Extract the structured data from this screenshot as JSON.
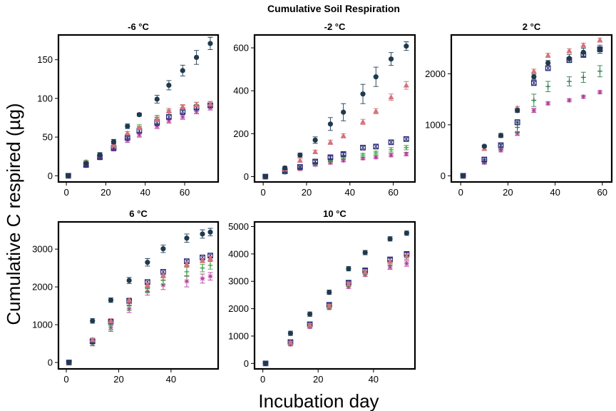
{
  "title": "Cumulative Soil Respiration",
  "ylabel": "Cumulative C respired (µg)",
  "xlabel": "Incubation day",
  "chart_data": [
    {
      "type": "scatter",
      "title": "-6 °C",
      "xlim": [
        -4,
        77
      ],
      "ylim": [
        -8,
        182
      ],
      "xticks": [
        "0",
        "20",
        "40",
        "60"
      ],
      "xtick_values": [
        0,
        20,
        40,
        60
      ],
      "yticks": [
        "0",
        "50",
        "100",
        "150"
      ],
      "ytick_values": [
        0,
        50,
        100,
        150
      ],
      "series": [
        {
          "marker": "circle",
          "color": "#1f3a4d",
          "x": [
            1,
            10,
            17,
            24,
            31,
            37,
            46,
            52,
            59,
            66,
            73
          ],
          "y": [
            0,
            16,
            27,
            44,
            64,
            79,
            99,
            117,
            136,
            153,
            171
          ],
          "err": [
            1,
            2,
            3,
            3,
            3,
            2,
            5,
            6,
            7,
            9,
            8
          ]
        },
        {
          "marker": "triangle",
          "color": "#d4727a",
          "x": [
            1,
            10,
            17,
            24,
            31,
            37,
            46,
            52,
            59,
            66,
            73
          ],
          "y": [
            0,
            17,
            26,
            40,
            55,
            62,
            73,
            84,
            89,
            92,
            93
          ],
          "err": [
            1,
            2,
            2,
            3,
            2,
            2,
            3,
            3,
            3,
            3,
            3
          ]
        },
        {
          "marker": "square",
          "color": "#2a2a7a",
          "x": [
            1,
            10,
            17,
            24,
            31,
            37,
            46,
            52,
            59,
            66,
            73
          ],
          "y": [
            0,
            14,
            24,
            36,
            49,
            58,
            69,
            76,
            83,
            88,
            91
          ],
          "err": [
            1,
            2,
            2,
            3,
            3,
            3,
            4,
            3,
            4,
            3,
            3
          ]
        },
        {
          "marker": "plus",
          "color": "#3a9a3a",
          "x": [
            1,
            10,
            17,
            24,
            31,
            37,
            46,
            52,
            59,
            66,
            73
          ],
          "y": [
            0,
            18,
            27,
            42,
            54,
            63,
            75,
            82,
            88,
            92,
            93
          ],
          "err": [
            1,
            2,
            2,
            3,
            3,
            3,
            3,
            3,
            3,
            3,
            3
          ]
        },
        {
          "marker": "star",
          "color": "#b03a9a",
          "x": [
            1,
            10,
            17,
            24,
            31,
            37,
            46,
            52,
            59,
            66,
            73
          ],
          "y": [
            0,
            13,
            23,
            35,
            46,
            53,
            64,
            71,
            76,
            83,
            88
          ],
          "err": [
            1,
            2,
            2,
            3,
            3,
            3,
            3,
            3,
            3,
            3,
            3
          ]
        }
      ]
    },
    {
      "type": "scatter",
      "title": "-2 °C",
      "xlim": [
        -4,
        70
      ],
      "ylim": [
        -25,
        660
      ],
      "xticks": [
        "0",
        "20",
        "40",
        "60"
      ],
      "xtick_values": [
        0,
        20,
        40,
        60
      ],
      "yticks": [
        "0",
        "200",
        "400",
        "600"
      ],
      "ytick_values": [
        0,
        200,
        400,
        600
      ],
      "series": [
        {
          "marker": "circle",
          "color": "#1f3a4d",
          "x": [
            1,
            10,
            17,
            24,
            31,
            37,
            46,
            52,
            59,
            66
          ],
          "y": [
            0,
            40,
            100,
            170,
            245,
            300,
            385,
            465,
            548,
            608
          ],
          "err": [
            2,
            8,
            10,
            15,
            30,
            40,
            45,
            45,
            30,
            20
          ]
        },
        {
          "marker": "triangle",
          "color": "#d4727a",
          "x": [
            1,
            10,
            17,
            24,
            31,
            37,
            46,
            52,
            59,
            66
          ],
          "y": [
            0,
            35,
            75,
            115,
            160,
            190,
            255,
            305,
            370,
            425
          ],
          "err": [
            2,
            5,
            8,
            8,
            10,
            10,
            12,
            12,
            15,
            18
          ]
        },
        {
          "marker": "square",
          "color": "#2a2a7a",
          "x": [
            1,
            10,
            17,
            24,
            31,
            37,
            46,
            52,
            59,
            66
          ],
          "y": [
            0,
            25,
            45,
            70,
            90,
            105,
            135,
            140,
            160,
            175
          ],
          "err": [
            2,
            5,
            6,
            8,
            8,
            8,
            10,
            10,
            10,
            10
          ]
        },
        {
          "marker": "plus",
          "color": "#3a9a3a",
          "x": [
            1,
            10,
            17,
            24,
            31,
            37,
            46,
            52,
            59,
            66
          ],
          "y": [
            0,
            20,
            40,
            60,
            75,
            90,
            100,
            110,
            125,
            135
          ],
          "err": [
            2,
            4,
            6,
            6,
            6,
            6,
            8,
            8,
            10,
            10
          ]
        },
        {
          "marker": "star",
          "color": "#b03a9a",
          "x": [
            1,
            10,
            17,
            24,
            31,
            37,
            46,
            52,
            59,
            66
          ],
          "y": [
            0,
            20,
            35,
            55,
            65,
            75,
            85,
            90,
            100,
            105
          ],
          "err": [
            2,
            4,
            5,
            5,
            6,
            6,
            6,
            6,
            8,
            8
          ]
        }
      ]
    },
    {
      "type": "scatter",
      "title": "2 °C",
      "xlim": [
        -4,
        64
      ],
      "ylim": [
        -120,
        2760
      ],
      "xticks": [
        "0",
        "20",
        "40",
        "60"
      ],
      "xtick_values": [
        0,
        20,
        40,
        60
      ],
      "yticks": [
        "0",
        "1000",
        "2000"
      ],
      "ytick_values": [
        0,
        1000,
        2000
      ],
      "series": [
        {
          "marker": "circle",
          "color": "#1f3a4d",
          "x": [
            1,
            10,
            17,
            24,
            31,
            37,
            46,
            52,
            59
          ],
          "y": [
            0,
            580,
            790,
            1280,
            1940,
            2210,
            2300,
            2420,
            2480
          ],
          "err": [
            10,
            20,
            40,
            40,
            50,
            50,
            80,
            80,
            80
          ]
        },
        {
          "marker": "triangle",
          "color": "#d4727a",
          "x": [
            1,
            10,
            17,
            24,
            31,
            37,
            46,
            52,
            59
          ],
          "y": [
            0,
            530,
            800,
            1330,
            2050,
            2360,
            2450,
            2560,
            2660
          ],
          "err": [
            10,
            20,
            30,
            30,
            40,
            40,
            40,
            40,
            40
          ]
        },
        {
          "marker": "square",
          "color": "#2a2a7a",
          "x": [
            1,
            10,
            17,
            24,
            31,
            37,
            46,
            52,
            59
          ],
          "y": [
            0,
            320,
            600,
            1050,
            1820,
            2110,
            2270,
            2370,
            2480
          ],
          "err": [
            10,
            40,
            40,
            50,
            50,
            50,
            50,
            50,
            50
          ]
        },
        {
          "marker": "plus",
          "color": "#2a7a4a",
          "x": [
            1,
            10,
            17,
            24,
            31,
            37,
            46,
            52,
            59
          ],
          "y": [
            0,
            280,
            560,
            950,
            1480,
            1750,
            1850,
            1930,
            2050
          ],
          "err": [
            10,
            40,
            50,
            100,
            120,
            100,
            90,
            100,
            110
          ]
        },
        {
          "marker": "star",
          "color": "#b03a9a",
          "x": [
            1,
            10,
            17,
            24,
            31,
            37,
            46,
            52,
            59
          ],
          "y": [
            0,
            260,
            500,
            830,
            1280,
            1420,
            1480,
            1550,
            1640
          ],
          "err": [
            10,
            30,
            30,
            40,
            40,
            30,
            30,
            30,
            30
          ]
        }
      ]
    },
    {
      "type": "scatter",
      "title": "6 °C",
      "xlim": [
        -3,
        58
      ],
      "ylim": [
        -170,
        3720
      ],
      "xticks": [
        "0",
        "20",
        "40"
      ],
      "xtick_values": [
        0,
        20,
        40
      ],
      "yticks": [
        "0",
        "1000",
        "2000",
        "3000"
      ],
      "ytick_values": [
        0,
        1000,
        2000,
        3000
      ],
      "series": [
        {
          "marker": "circle",
          "color": "#1f3a4d",
          "x": [
            1,
            10,
            17,
            24,
            31,
            37,
            46,
            52,
            55
          ],
          "y": [
            0,
            1100,
            1650,
            2170,
            2650,
            3010,
            3290,
            3400,
            3450
          ],
          "err": [
            20,
            60,
            60,
            80,
            100,
            100,
            110,
            110,
            100
          ]
        },
        {
          "marker": "triangle",
          "color": "#d4727a",
          "x": [
            1,
            10,
            17,
            24,
            31,
            37,
            46,
            52,
            55
          ],
          "y": [
            0,
            600,
            1100,
            1650,
            2050,
            2300,
            2600,
            2700,
            2750
          ],
          "err": [
            20,
            50,
            60,
            60,
            60,
            60,
            60,
            60,
            60
          ]
        },
        {
          "marker": "square",
          "color": "#2a2a7a",
          "x": [
            1,
            10,
            17,
            24,
            31,
            37,
            46,
            52,
            55
          ],
          "y": [
            0,
            560,
            1080,
            1630,
            2130,
            2400,
            2680,
            2780,
            2830
          ],
          "err": [
            20,
            50,
            60,
            60,
            60,
            60,
            60,
            60,
            60
          ]
        },
        {
          "marker": "plus",
          "color": "#3a9a3a",
          "x": [
            1,
            10,
            17,
            24,
            31,
            37,
            46,
            52,
            55
          ],
          "y": [
            0,
            520,
            980,
            1500,
            1960,
            2180,
            2400,
            2500,
            2570
          ],
          "err": [
            20,
            80,
            120,
            120,
            100,
            120,
            120,
            100,
            100
          ]
        },
        {
          "marker": "star",
          "color": "#b03a9a",
          "x": [
            1,
            10,
            17,
            24,
            31,
            37,
            46,
            52,
            55
          ],
          "y": [
            0,
            500,
            920,
            1420,
            1880,
            2050,
            2150,
            2220,
            2280
          ],
          "err": [
            20,
            60,
            100,
            100,
            100,
            120,
            150,
            120,
            100
          ]
        }
      ]
    },
    {
      "type": "scatter",
      "title": "10 °C",
      "xlim": [
        -3,
        55
      ],
      "ylim": [
        -200,
        5170
      ],
      "xticks": [
        "0",
        "20",
        "40"
      ],
      "xtick_values": [
        0,
        20,
        40
      ],
      "yticks": [
        "0",
        "1000",
        "2000",
        "3000",
        "4000",
        "5000"
      ],
      "ytick_values": [
        0,
        1000,
        2000,
        3000,
        4000,
        5000
      ],
      "series": [
        {
          "marker": "circle",
          "color": "#1f3a4d",
          "x": [
            1,
            10,
            17,
            24,
            31,
            37,
            46,
            52
          ],
          "y": [
            0,
            1100,
            1800,
            2600,
            3460,
            4050,
            4550,
            4760
          ],
          "err": [
            20,
            80,
            80,
            80,
            80,
            80,
            80,
            80
          ]
        },
        {
          "marker": "triangle",
          "color": "#d4727a",
          "x": [
            1,
            10,
            17,
            24,
            31,
            37,
            46,
            52
          ],
          "y": [
            0,
            760,
            1400,
            2100,
            2900,
            3340,
            3720,
            3920
          ],
          "err": [
            20,
            50,
            60,
            60,
            60,
            60,
            60,
            60
          ]
        },
        {
          "marker": "square",
          "color": "#2a2a7a",
          "x": [
            1,
            10,
            17,
            24,
            31,
            37,
            46,
            52
          ],
          "y": [
            0,
            780,
            1430,
            2140,
            2950,
            3400,
            3800,
            4000
          ],
          "err": [
            20,
            50,
            60,
            60,
            60,
            60,
            60,
            60
          ]
        },
        {
          "marker": "plus",
          "color": "#3a9a3a",
          "x": [
            1,
            10,
            17,
            24,
            31,
            37,
            46,
            52
          ],
          "y": [
            0,
            740,
            1370,
            2070,
            2880,
            3310,
            3660,
            3880
          ],
          "err": [
            20,
            60,
            60,
            60,
            60,
            60,
            80,
            80
          ]
        },
        {
          "marker": "star",
          "color": "#b03a9a",
          "x": [
            1,
            10,
            17,
            24,
            31,
            37,
            46,
            52
          ],
          "y": [
            0,
            700,
            1340,
            2030,
            2800,
            3240,
            3520,
            3650
          ],
          "err": [
            20,
            60,
            60,
            60,
            60,
            60,
            80,
            100
          ]
        }
      ]
    }
  ]
}
